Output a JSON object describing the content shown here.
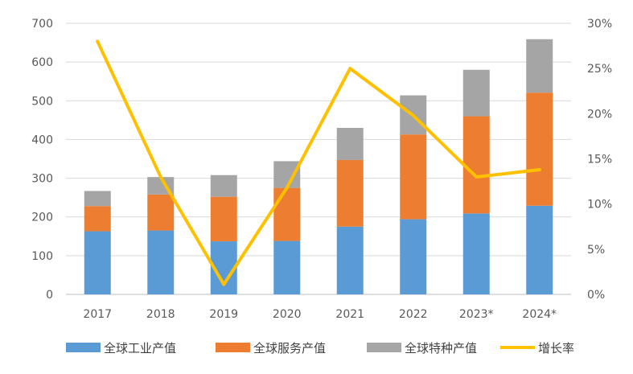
{
  "chart_data": {
    "type": "bar",
    "stacked": true,
    "categories": [
      "2017",
      "2018",
      "2019",
      "2020",
      "2021",
      "2022",
      "2023*",
      "2024*"
    ],
    "series": [
      {
        "name": "全球工业产值",
        "type": "bar",
        "axis": "left",
        "color": "#5B9BD5",
        "values": [
          163,
          165,
          137,
          138,
          175,
          194,
          209,
          229
        ]
      },
      {
        "name": "全球服务产值",
        "type": "bar",
        "axis": "left",
        "color": "#ED7D31",
        "values": [
          65,
          93,
          115,
          137,
          172,
          219,
          251,
          292
        ]
      },
      {
        "name": "全球特种产值",
        "type": "bar",
        "axis": "left",
        "color": "#A5A5A5",
        "values": [
          39,
          45,
          56,
          69,
          83,
          101,
          120,
          138
        ]
      },
      {
        "name": "增长率",
        "type": "line",
        "axis": "right",
        "color": "#FFC000",
        "values": [
          28.0,
          13.0,
          1.1,
          11.8,
          25.0,
          19.8,
          13.0,
          13.8
        ]
      }
    ],
    "left_axis": {
      "ticks": [
        "0",
        "100",
        "200",
        "300",
        "400",
        "500",
        "600",
        "700"
      ],
      "ylim": [
        0,
        700
      ]
    },
    "right_axis": {
      "ticks": [
        "0%",
        "5%",
        "10%",
        "15%",
        "20%",
        "25%",
        "30%"
      ],
      "ylim": [
        0,
        30
      ]
    },
    "grid": true,
    "legend_position": "bottom",
    "title": "",
    "xlabel": "",
    "ylabel": ""
  }
}
